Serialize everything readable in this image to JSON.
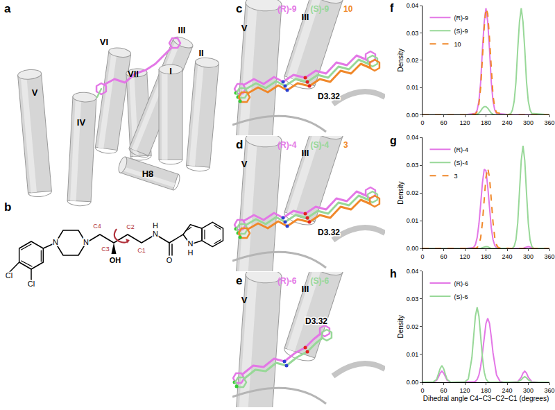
{
  "figure": {
    "panels": [
      {
        "label": "a",
        "helices": [
          "V",
          "IV",
          "VI",
          "VII",
          "III",
          "I",
          "II",
          "H8"
        ]
      },
      {
        "label": "b",
        "atoms": {
          "cl1": "Cl",
          "cl2": "Cl",
          "n_pip1": "N",
          "n_pip2": "N",
          "oh": "OH",
          "n_amide": "N",
          "h_amide": "H",
          "o": "O",
          "n_indole": "N",
          "h_indole": "H",
          "c1": "C1",
          "c2": "C2",
          "c3": "C3",
          "c4": "C4"
        }
      },
      {
        "label": "c",
        "helices": [
          "V",
          "III"
        ],
        "residue": "D3.32"
      },
      {
        "label": "d",
        "helices": [
          "V",
          "III"
        ],
        "residue": "D3.32"
      },
      {
        "label": "e",
        "helices": [
          "V",
          "III"
        ],
        "residue": "D3.32"
      }
    ]
  },
  "chart_data": [
    {
      "type": "line",
      "title": "f",
      "x": [
        0,
        60,
        120,
        150,
        155,
        160,
        165,
        170,
        175,
        180,
        185,
        190,
        195,
        200,
        205,
        210,
        240,
        250,
        255,
        260,
        265,
        270,
        275,
        280,
        285,
        290,
        295,
        300,
        305,
        310,
        360
      ],
      "series": [
        {
          "name": "(R)-9",
          "color": "#e377e6",
          "line_style": "solid",
          "values": [
            0,
            0,
            0,
            0.0005,
            0.0017,
            0.005,
            0.012,
            0.024,
            0.034,
            0.039,
            0.034,
            0.024,
            0.012,
            0.005,
            0.0017,
            0.0005,
            0,
            0,
            0,
            0,
            0,
            0,
            0,
            0,
            0,
            0,
            0,
            0,
            0,
            0,
            0
          ]
        },
        {
          "name": "(S)-9",
          "color": "#98d898",
          "line_style": "solid",
          "values": [
            0,
            0,
            0,
            0,
            0.0002,
            0.0006,
            0.0014,
            0.0024,
            0.003,
            0.003,
            0.0024,
            0.0014,
            0.0006,
            0.0002,
            0,
            0,
            0,
            0.0004,
            0.0017,
            0.005,
            0.012,
            0.024,
            0.034,
            0.039,
            0.034,
            0.024,
            0.012,
            0.005,
            0.0017,
            0.0005,
            0
          ]
        },
        {
          "name": "10",
          "color": "#f0882a",
          "line_style": "dashed",
          "values": [
            0,
            0,
            0,
            0.0003,
            0.0012,
            0.004,
            0.01,
            0.021,
            0.032,
            0.039,
            0.037,
            0.028,
            0.016,
            0.007,
            0.0025,
            0.0008,
            0,
            0,
            0,
            0,
            0,
            0,
            0,
            0,
            0,
            0,
            0,
            0,
            0,
            0,
            0
          ]
        }
      ],
      "xlim": [
        0,
        360
      ],
      "xticks": [
        0,
        60,
        120,
        180,
        240,
        300,
        360
      ],
      "ylim": [
        0,
        0.04
      ],
      "yticks": [
        {
          "value": 0,
          "label": "0.00"
        },
        {
          "value": 0.01,
          "label": "0.01"
        },
        {
          "value": 0.02,
          "label": "0.02"
        },
        {
          "value": 0.03,
          "label": "0.03"
        },
        {
          "value": 0.04,
          "label": "0.04"
        }
      ],
      "y_label": "Density",
      "legend": "top left",
      "grid": false
    },
    {
      "type": "line",
      "title": "g",
      "x": [
        0,
        60,
        120,
        145,
        150,
        155,
        160,
        165,
        170,
        175,
        180,
        185,
        190,
        195,
        200,
        205,
        210,
        215,
        240,
        255,
        260,
        265,
        270,
        275,
        280,
        285,
        290,
        295,
        300,
        305,
        310,
        315,
        360
      ],
      "series": [
        {
          "name": "(R)-4",
          "color": "#e377e6",
          "line_style": "solid",
          "values": [
            0,
            0,
            0,
            0.0004,
            0.0014,
            0.0039,
            0.0088,
            0.016,
            0.0237,
            0.0285,
            0.028,
            0.0223,
            0.0144,
            0.0075,
            0.0032,
            0.0011,
            0.0003,
            0,
            0,
            0,
            0,
            0,
            0,
            0,
            0,
            0,
            0.0003,
            0.0006,
            0.0007,
            0.0005,
            0.0002,
            0,
            0
          ]
        },
        {
          "name": "(S)-4",
          "color": "#98d898",
          "line_style": "solid",
          "values": [
            0,
            0,
            0,
            0,
            0,
            0,
            0,
            0,
            0.0003,
            0.0006,
            0.0007,
            0.0006,
            0.0003,
            0,
            0,
            0,
            0,
            0,
            0,
            0.0001,
            0.0008,
            0.0031,
            0.0092,
            0.0199,
            0.0317,
            0.037,
            0.0317,
            0.0199,
            0.0092,
            0.0031,
            0.0008,
            0.0001,
            0
          ]
        },
        {
          "name": "3",
          "color": "#f0882a",
          "line_style": "dashed",
          "values": [
            0,
            0,
            0,
            0,
            0.0001,
            0.0003,
            0.0013,
            0.0039,
            0.0094,
            0.0176,
            0.0256,
            0.029,
            0.0256,
            0.0176,
            0.0094,
            0.0039,
            0.0013,
            0.0003,
            0,
            0,
            0,
            0,
            0,
            0,
            0,
            0,
            0,
            0,
            0,
            0,
            0,
            0,
            0
          ]
        }
      ],
      "xlim": [
        0,
        360
      ],
      "xticks": [
        0,
        60,
        120,
        180,
        240,
        300,
        360
      ],
      "ylim": [
        0,
        0.04
      ],
      "yticks": [
        {
          "value": 0,
          "label": "0.00"
        },
        {
          "value": 0.01,
          "label": "0.01"
        },
        {
          "value": 0.02,
          "label": "0.02"
        },
        {
          "value": 0.03,
          "label": "0.03"
        },
        {
          "value": 0.04,
          "label": "0.04"
        }
      ],
      "y_label": "Density",
      "legend": "top left",
      "grid": false
    },
    {
      "type": "line",
      "title": "h",
      "x": [
        0,
        20,
        30,
        40,
        45,
        50,
        55,
        60,
        65,
        70,
        80,
        90,
        110,
        120,
        130,
        140,
        145,
        150,
        155,
        160,
        165,
        170,
        175,
        180,
        185,
        190,
        195,
        200,
        210,
        220,
        230,
        250,
        270,
        280,
        285,
        290,
        295,
        300,
        310,
        330,
        360
      ],
      "series": [
        {
          "name": "(R)-6",
          "color": "#e377e6",
          "line_style": "solid",
          "values": [
            0,
            0,
            0,
            0.0007,
            0.0018,
            0.0033,
            0.004,
            0.0033,
            0.0018,
            0.0007,
            0,
            0,
            0,
            0,
            0,
            0,
            0.0001,
            0.0003,
            0.001,
            0.0026,
            0.0057,
            0.0105,
            0.0163,
            0.0212,
            0.023,
            0.0212,
            0.0163,
            0.0105,
            0.0026,
            0.0003,
            0,
            0,
            0.0002,
            0.0018,
            0.0033,
            0.004,
            0.0033,
            0.0018,
            0.0002,
            0,
            0
          ]
        },
        {
          "name": "(S)-6",
          "color": "#98d898",
          "line_style": "solid",
          "values": [
            0,
            0,
            0.0001,
            0.001,
            0.0028,
            0.0049,
            0.006,
            0.0049,
            0.0028,
            0.001,
            0,
            0,
            0,
            0.0001,
            0.0012,
            0.0088,
            0.0164,
            0.0238,
            0.027,
            0.0238,
            0.0164,
            0.0088,
            0.0037,
            0.0012,
            0.0003,
            0,
            0,
            0,
            0,
            0,
            0,
            0,
            0.0001,
            0.0009,
            0.0016,
            0.002,
            0.0016,
            0.0009,
            0,
            0,
            0
          ]
        }
      ],
      "xlim": [
        0,
        360
      ],
      "xticks": [
        0,
        60,
        120,
        180,
        240,
        300,
        360
      ],
      "ylim": [
        0,
        0.04
      ],
      "yticks": [
        {
          "value": 0,
          "label": "0.00"
        },
        {
          "value": 0.01,
          "label": "0.01"
        },
        {
          "value": 0.02,
          "label": "0.02"
        },
        {
          "value": 0.03,
          "label": "0.03"
        },
        {
          "value": 0.04,
          "label": "0.04"
        }
      ],
      "y_label": "Density",
      "x_label": "Dihedral angle C4−C3−C2−C1 (degrees)",
      "legend": "top left",
      "grid": false
    }
  ]
}
